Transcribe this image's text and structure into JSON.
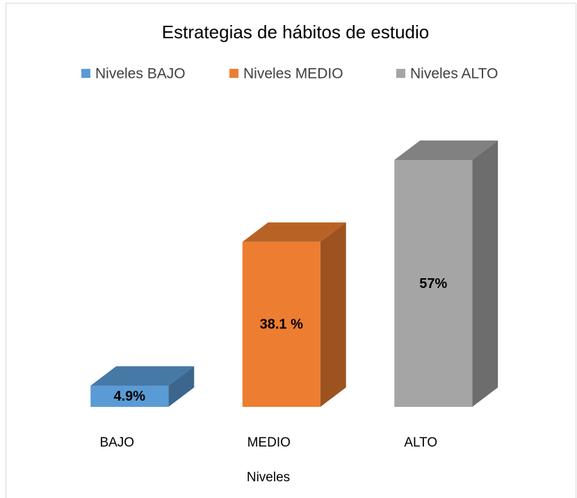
{
  "chart_data": {
    "type": "bar3d",
    "title": "Estrategias de hábitos de estudio",
    "categories": [
      "BAJO",
      "MEDIO",
      "ALTO"
    ],
    "x_label": "Niveles",
    "legend": "top",
    "series": [
      {
        "name": "Niveles  BAJO",
        "color": "#5b9bd5",
        "values": [
          4.9,
          null,
          null
        ],
        "value_labels": [
          "4.9%",
          null,
          null
        ]
      },
      {
        "name": "Niveles  MEDIO",
        "color": "#ed7d31",
        "values": [
          null,
          38.1,
          null
        ],
        "value_labels": [
          null,
          "38.1 %",
          null
        ]
      },
      {
        "name": "Niveles  ALTO",
        "color": "#a5a5a5",
        "values": [
          null,
          null,
          57
        ],
        "value_labels": [
          null,
          null,
          "57%"
        ]
      }
    ]
  }
}
